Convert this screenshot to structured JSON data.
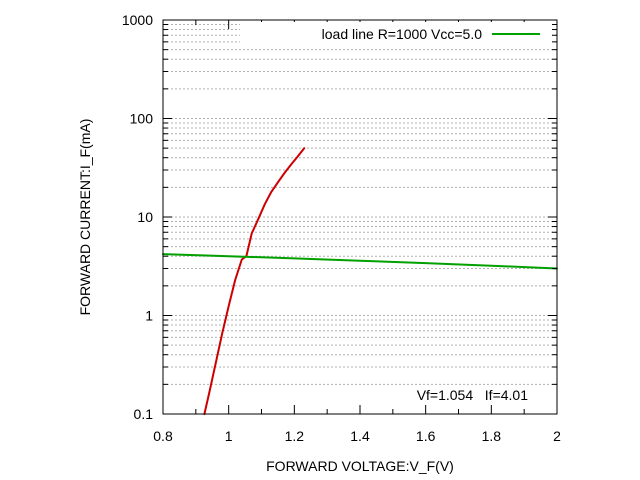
{
  "chart_data": {
    "type": "line",
    "xlabel": "FORWARD VOLTAGE:V_F(V)",
    "ylabel": "FORWARD CURRENT:I_F(mA)",
    "xlim": [
      0.8,
      2.0
    ],
    "ylim": [
      0.1,
      1000
    ],
    "yscale": "log",
    "grid": true,
    "x_ticks": [
      "0.8",
      "1",
      "1.2",
      "1.4",
      "1.6",
      "1.8",
      "2"
    ],
    "y_ticks": [
      "0.1",
      "1",
      "10",
      "100",
      "1000"
    ],
    "legend_position": "top-right",
    "series": [
      {
        "color": "#cc0000",
        "x": [
          0.926,
          0.94,
          0.96,
          0.98,
          1.0,
          1.02,
          1.04,
          1.054,
          1.07,
          1.09,
          1.11,
          1.13,
          1.15,
          1.17,
          1.19,
          1.21,
          1.23
        ],
        "y": [
          0.1,
          0.16,
          0.32,
          0.65,
          1.25,
          2.3,
          3.7,
          4.01,
          6.8,
          9.5,
          13.5,
          18,
          22.5,
          28,
          34,
          41,
          50
        ]
      },
      {
        "name": "load line R=1000 Vcc=5.0",
        "color": "#00a000",
        "x": [
          0.8,
          1.0,
          1.2,
          1.4,
          1.6,
          1.8,
          2.0
        ],
        "y": [
          4.2,
          4.0,
          3.8,
          3.6,
          3.4,
          3.2,
          3.0
        ]
      }
    ],
    "annotation": "Vf=1.054   If=4.01"
  }
}
